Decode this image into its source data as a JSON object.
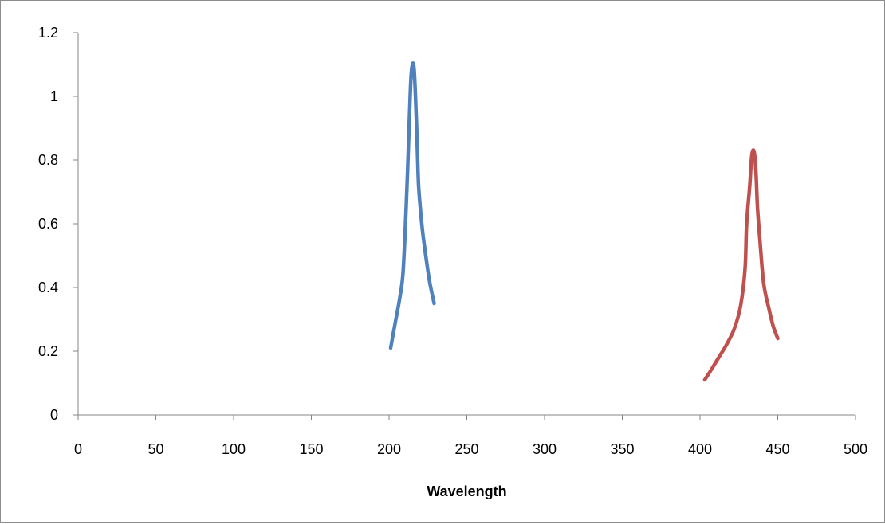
{
  "chart_data": {
    "type": "line",
    "title": "",
    "xlabel": "Wavelength",
    "ylabel": "",
    "xlim": [
      0,
      500
    ],
    "ylim": [
      0,
      1.2
    ],
    "x_ticks": [
      0,
      50,
      100,
      150,
      200,
      250,
      300,
      350,
      400,
      450,
      500
    ],
    "y_ticks": [
      0,
      0.2,
      0.4,
      0.6,
      0.8,
      1,
      1.2
    ],
    "x_tick_labels": [
      "0",
      "50",
      "100",
      "150",
      "200",
      "250",
      "300",
      "350",
      "400",
      "450",
      "500"
    ],
    "y_tick_labels": [
      "0",
      "0.2",
      "0.4",
      "0.6",
      "0.8",
      "1",
      "1.2"
    ],
    "grid": false,
    "legend": "none",
    "series": [
      {
        "color": "#4F81BD",
        "points": [
          [
            201,
            0.21
          ],
          [
            204,
            0.29
          ],
          [
            207,
            0.37
          ],
          [
            209,
            0.45
          ],
          [
            211,
            0.65
          ],
          [
            213,
            0.92
          ],
          [
            214,
            1.05
          ],
          [
            215,
            1.1
          ],
          [
            216,
            1.09
          ],
          [
            217,
            1.0
          ],
          [
            218,
            0.86
          ],
          [
            219,
            0.72
          ],
          [
            221,
            0.6
          ],
          [
            223,
            0.52
          ],
          [
            226,
            0.42
          ],
          [
            229,
            0.35
          ]
        ]
      },
      {
        "color": "#C0504D",
        "points": [
          [
            403,
            0.11
          ],
          [
            407,
            0.14
          ],
          [
            412,
            0.18
          ],
          [
            417,
            0.22
          ],
          [
            422,
            0.27
          ],
          [
            426,
            0.34
          ],
          [
            429,
            0.46
          ],
          [
            430,
            0.6
          ],
          [
            432,
            0.72
          ],
          [
            433,
            0.8
          ],
          [
            434,
            0.83
          ],
          [
            435,
            0.82
          ],
          [
            436,
            0.76
          ],
          [
            437,
            0.65
          ],
          [
            439,
            0.52
          ],
          [
            441,
            0.41
          ],
          [
            444,
            0.34
          ],
          [
            447,
            0.28
          ],
          [
            450,
            0.24
          ]
        ]
      }
    ]
  }
}
